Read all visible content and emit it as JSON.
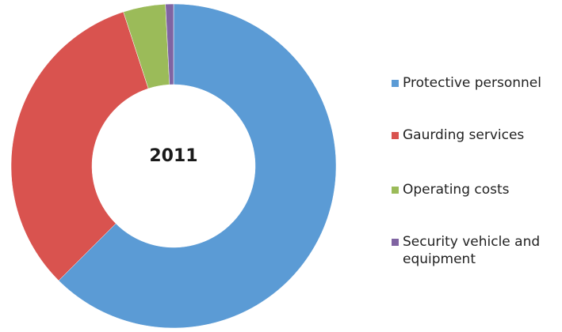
{
  "chart_data": {
    "type": "pie",
    "variant": "donut",
    "center_label": "2011",
    "categories": [
      "Protective personnel",
      "Gaurding services",
      "Operating costs",
      "Security vehicle and equipment"
    ],
    "values": [
      62.5,
      32.5,
      4.2,
      0.8
    ],
    "unit": "%",
    "colors": [
      "#5b9bd5",
      "#d9534f",
      "#9bbb59",
      "#8064a2"
    ],
    "legend_position": "right"
  }
}
